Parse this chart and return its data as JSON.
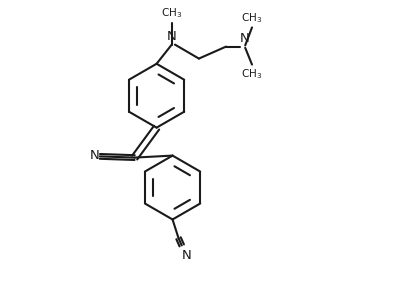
{
  "bg_color": "#ffffff",
  "line_color": "#1a1a1a",
  "lw": 1.5,
  "fig_width": 4.01,
  "fig_height": 3.04,
  "dpi": 100,
  "xlim": [
    0,
    10
  ],
  "ylim": [
    0,
    7.58
  ]
}
